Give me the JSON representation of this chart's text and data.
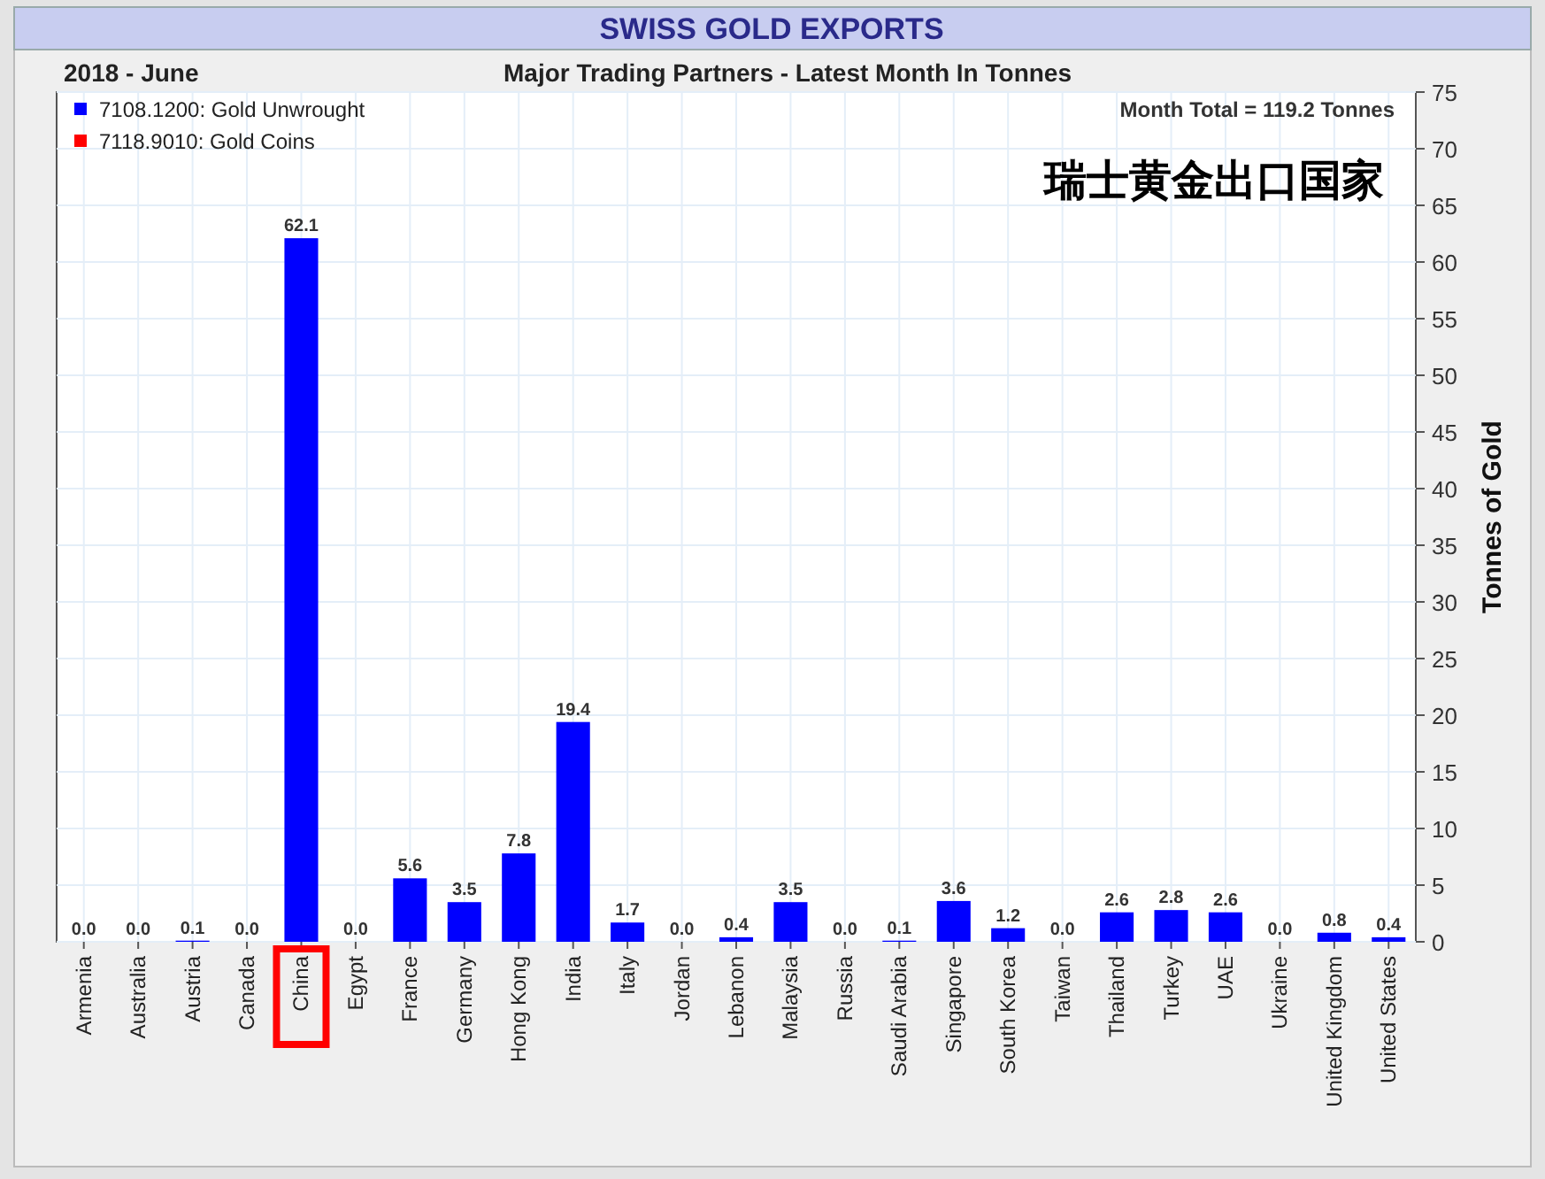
{
  "chart_data": {
    "type": "bar",
    "title": "SWISS GOLD EXPORTS",
    "subtitle": "Major Trading Partners - Latest Month In Tonnes",
    "annotations": [
      "2018 - June",
      "Month Total = 119.2 Tonnes",
      "瑞士黄金出口国家"
    ],
    "ylabel": "Tonnes of Gold",
    "categories": [
      "Armenia",
      "Australia",
      "Austria",
      "Canada",
      "China",
      "Egypt",
      "France",
      "Germany",
      "Hong Kong",
      "India",
      "Italy",
      "Jordan",
      "Lebanon",
      "Malaysia",
      "Russia",
      "Saudi Arabia",
      "Singapore",
      "South Korea",
      "Taiwan",
      "Thailand",
      "Turkey",
      "UAE",
      "Ukraine",
      "United Kingdom",
      "United States"
    ],
    "stacked": true,
    "series": [
      {
        "name": "7108.1200: Gold Unwrought",
        "color": "#0000ff",
        "values": [
          0.0,
          0.0,
          0.1,
          0.0,
          62.1,
          0.0,
          5.6,
          3.5,
          7.8,
          19.4,
          1.7,
          0.0,
          0.4,
          3.5,
          0.0,
          0.1,
          3.6,
          1.2,
          0.0,
          2.6,
          2.8,
          2.6,
          0.0,
          0.8,
          0.4
        ]
      },
      {
        "name": "7118.9010: Gold Coins",
        "color": "#ff0000",
        "values": [
          0,
          0,
          0,
          0,
          0,
          0,
          0,
          0,
          0,
          0,
          0,
          0,
          0,
          0,
          0,
          0,
          0,
          0,
          0,
          0,
          0,
          0,
          0,
          0,
          0
        ]
      }
    ],
    "totals": [
      "0.0",
      "0.0",
      "0.1",
      "0.0",
      "62.1",
      "0.0",
      "5.6",
      "3.5",
      "7.8",
      "19.4",
      "1.7",
      "0.0",
      "0.4",
      "3.5",
      "0.0",
      "0.1",
      "3.6",
      "1.2",
      "0.0",
      "2.6",
      "2.8",
      "2.6",
      "0.0",
      "0.8",
      "0.4"
    ],
    "ylim": [
      0,
      75
    ],
    "yticks": [
      0,
      5,
      10,
      15,
      20,
      25,
      30,
      35,
      40,
      45,
      50,
      55,
      60,
      65,
      70,
      75
    ],
    "grid": true,
    "legend": "top left"
  }
}
